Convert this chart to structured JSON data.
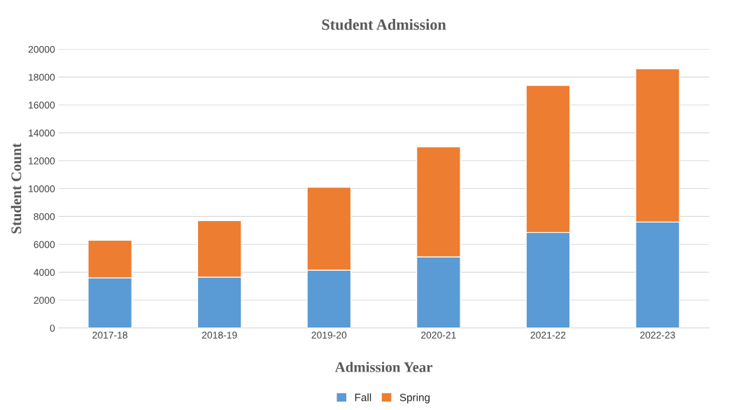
{
  "chart_data": {
    "type": "bar",
    "title": "Student Admission",
    "xlabel": "Admission Year",
    "ylabel": "Student Count",
    "categories": [
      "2017-18",
      "2018-19",
      "2019-20",
      "2020-21",
      "2021-22",
      "2022-23"
    ],
    "series": [
      {
        "name": "Fall",
        "color": "#5b9bd5",
        "values": [
          3600,
          3650,
          4150,
          5100,
          6850,
          7600
        ]
      },
      {
        "name": "Spring",
        "color": "#ed7d31",
        "values": [
          2700,
          4050,
          5950,
          7900,
          10550,
          11000
        ]
      }
    ],
    "stacked": true,
    "ylim": [
      0,
      20000
    ],
    "yticks": [
      0,
      2000,
      4000,
      6000,
      8000,
      10000,
      12000,
      14000,
      16000,
      18000,
      20000
    ],
    "grid": "y",
    "legend": "bottom"
  }
}
